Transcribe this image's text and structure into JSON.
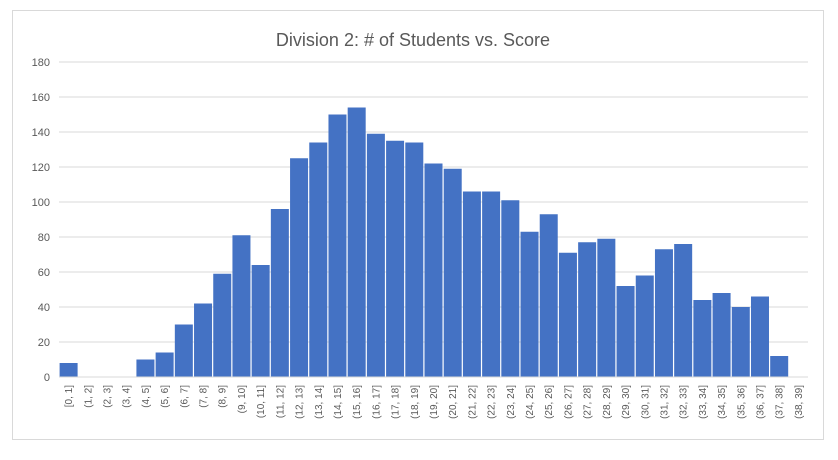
{
  "chart_data": {
    "type": "bar",
    "title": "Division 2: # of Students vs. Score",
    "xlabel": "",
    "ylabel": "",
    "ylim": [
      0,
      180
    ],
    "yticks": [
      0,
      20,
      40,
      60,
      80,
      100,
      120,
      140,
      160,
      180
    ],
    "grid": true,
    "legend": "none",
    "bar_color": "#4472c4",
    "categories": [
      "[0, 1]",
      "(1, 2]",
      "(2, 3]",
      "(3, 4]",
      "(4, 5]",
      "(5, 6]",
      "(6, 7]",
      "(7, 8]",
      "(8, 9]",
      "(9, 10]",
      "(10, 11]",
      "(11, 12]",
      "(12, 13]",
      "(13, 14]",
      "(14, 15]",
      "(15, 16]",
      "(16, 17]",
      "(17, 18]",
      "(18, 19]",
      "(19, 20]",
      "(20, 21]",
      "(21, 22]",
      "(22, 23]",
      "(23, 24]",
      "(24, 25]",
      "(25, 26]",
      "(26, 27]",
      "(27, 28]",
      "(28, 29]",
      "(29, 30]",
      "(30, 31]",
      "(31, 32]",
      "(32, 33]",
      "(33, 34]",
      "(34, 35]",
      "(35, 36]",
      "(36, 37]",
      "(37, 38]",
      "(38, 39]"
    ],
    "values": [
      8,
      0,
      0,
      0,
      10,
      14,
      30,
      42,
      59,
      81,
      64,
      96,
      125,
      134,
      150,
      154,
      139,
      135,
      134,
      122,
      119,
      106,
      106,
      101,
      83,
      93,
      71,
      77,
      79,
      52,
      58,
      73,
      76,
      44,
      48,
      40,
      46,
      12,
      0
    ]
  }
}
